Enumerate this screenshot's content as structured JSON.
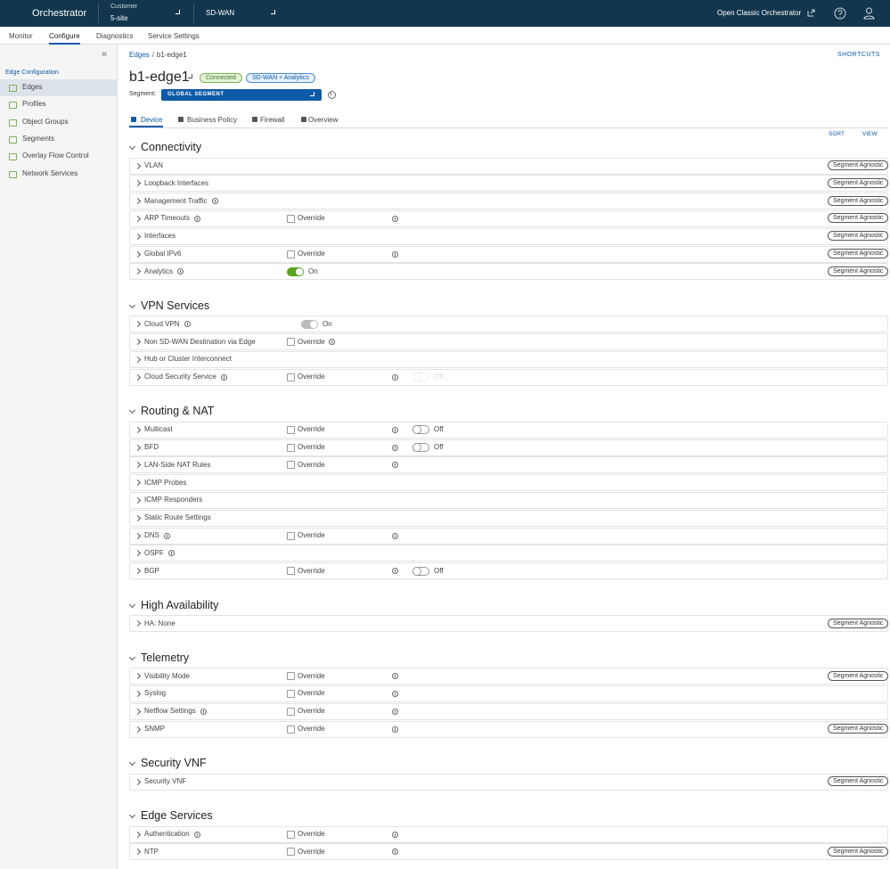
{
  "header": {
    "brand": "Orchestrator",
    "customer_label": "Customer",
    "customer": "5-site",
    "product": "SD-WAN",
    "classic_link": "Open Classic Orchestrator"
  },
  "tabs": [
    "Monitor",
    "Configure",
    "Diagnostics",
    "Service Settings"
  ],
  "active_tab": 1,
  "sidebar": {
    "title": "Edge Configuration",
    "items": [
      "Edges",
      "Profiles",
      "Object Groups",
      "Segments",
      "Overlay Flow Control",
      "Network Services"
    ],
    "active": 0
  },
  "breadcrumb": {
    "parent": "Edges",
    "separator": "/",
    "current": "b1-edge1"
  },
  "shortcuts": "SHORTCUTS",
  "edge": {
    "name": "b1-edge1",
    "status": "Connected",
    "license": "SD-WAN + Analytics",
    "segment_label": "Segment:",
    "segment": "GLOBAL SEGMENT"
  },
  "subtabs": [
    "Device",
    "Business Policy",
    "Firewall",
    "Overview"
  ],
  "sort": "SORT",
  "view": "VIEW",
  "sections": [
    {
      "title": "Connectivity",
      "rows": [
        {
          "label": "VLAN",
          "tag": "Segment Agnostic"
        },
        {
          "label": "Loopback Interfaces",
          "tag": "Segment Agnostic"
        },
        {
          "label": "Management Traffic",
          "label_info": true,
          "tag": "Segment Agnostic"
        },
        {
          "label": "ARP Timeouts",
          "label_info": true,
          "override": "Override",
          "override_info": "column",
          "tag": "Segment Agnostic"
        },
        {
          "label": "Interfaces",
          "tag": "Segment Agnostic"
        },
        {
          "label": "Global IPv6",
          "override": "Override",
          "override_info": "column",
          "tag": "Segment Agnostic"
        },
        {
          "label": "Analytics",
          "label_info": true,
          "toggle": {
            "label": "On",
            "state": "on"
          },
          "tag": "Segment Agnostic"
        }
      ]
    },
    {
      "title": "VPN Services",
      "rows": [
        {
          "label": "Cloud VPN",
          "label_info": true,
          "toggle": {
            "label": "On",
            "state": "locked"
          }
        },
        {
          "label": "Non SD-WAN Destination via Edge",
          "override": "Override",
          "override_info": "inline"
        },
        {
          "label": "Hub or Cluster Interconnect"
        },
        {
          "label": "Cloud Security Service",
          "label_info": true,
          "override": "Override",
          "override_info": "column",
          "toggle": {
            "label": "Off",
            "state": "faded"
          }
        }
      ]
    },
    {
      "title": "Routing & NAT",
      "rows": [
        {
          "label": "Multicast",
          "override": "Override",
          "override_info": "column",
          "toggle": {
            "label": "Off",
            "state": "off"
          }
        },
        {
          "label": "BFD",
          "override": "Override",
          "override_info": "column",
          "toggle": {
            "label": "Off",
            "state": "off"
          }
        },
        {
          "label": "LAN-Side NAT Rules",
          "override": "Override",
          "override_info": "column"
        },
        {
          "label": "ICMP Probes"
        },
        {
          "label": "ICMP Responders"
        },
        {
          "label": "Static Route Settings"
        },
        {
          "label": "DNS",
          "label_info": true,
          "override": "Override",
          "override_info": "column"
        },
        {
          "label": "OSPF",
          "label_info": true
        },
        {
          "label": "BGP",
          "override": "Override",
          "override_info": "column",
          "toggle": {
            "label": "Off",
            "state": "off"
          }
        }
      ]
    },
    {
      "title": "High Availability",
      "rows": [
        {
          "label": "HA: None",
          "tag": "Segment Agnostic"
        }
      ]
    },
    {
      "title": "Telemetry",
      "rows": [
        {
          "label": "Visibility Mode",
          "override": "Override",
          "override_info": "column",
          "tag": "Segment Agnostic"
        },
        {
          "label": "Syslog",
          "override": "Override",
          "override_info": "column"
        },
        {
          "label": "Netflow Settings",
          "label_info": true,
          "override": "Override",
          "override_info": "column"
        },
        {
          "label": "SNMP",
          "override": "Override",
          "override_info": "column",
          "tag": "Segment Agnostic"
        }
      ]
    },
    {
      "title": "Security VNF",
      "rows": [
        {
          "label": "Security VNF",
          "tag": "Segment Agnostic"
        }
      ]
    },
    {
      "title": "Edge Services",
      "rows": [
        {
          "label": "Authentication",
          "label_info": true,
          "override": "Override",
          "override_info": "column"
        },
        {
          "label": "NTP",
          "override": "Override",
          "override_info": "column",
          "tag": "Segment Agnostic"
        }
      ]
    }
  ]
}
